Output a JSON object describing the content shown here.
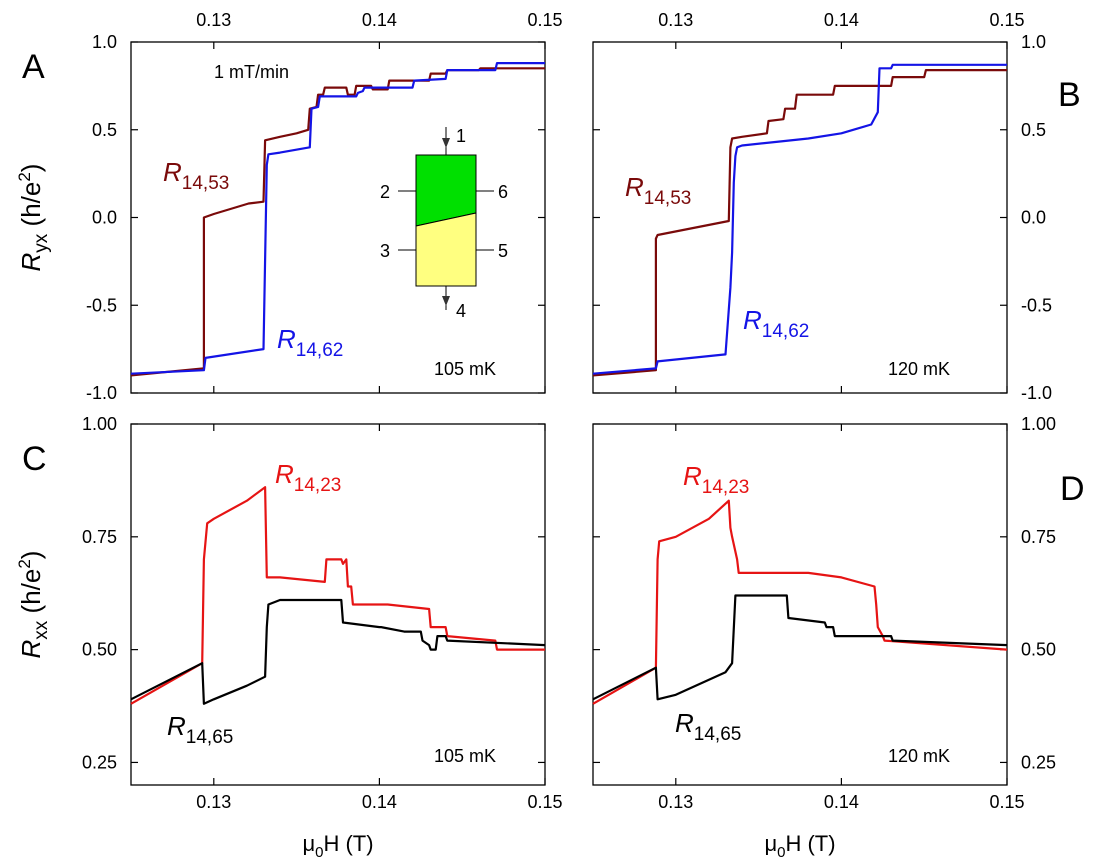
{
  "chart_data": [
    {
      "panel": "A",
      "type": "line",
      "xaxis": {
        "ticks": [
          0.13,
          0.14,
          0.15
        ],
        "tick_labels": [
          "0.13",
          "0.14",
          "0.15"
        ],
        "labels_on": "top",
        "range": [
          0.125,
          0.15
        ]
      },
      "yaxis": {
        "ticks": [
          -1.0,
          -0.5,
          0.0,
          0.5,
          1.0
        ],
        "tick_labels": [
          "-1.0",
          "-0.5",
          "0.0",
          "0.5",
          "1.0"
        ],
        "range": [
          -1.0,
          1.0
        ],
        "label_main": "R",
        "label_sub": "yx",
        "label_rest": " (h/e",
        "label_sup": "2",
        "label_end": ")"
      },
      "annotations": {
        "rate": "1 mT/min",
        "temperature": "105 mK"
      },
      "series": [
        {
          "name_main": "R",
          "name_sub": "14,53",
          "color": "#7a0a0a",
          "x": [
            0.125,
            0.1294,
            0.1294,
            0.13,
            0.1321,
            0.133,
            0.1331,
            0.134,
            0.135,
            0.1357,
            0.1358,
            0.1362,
            0.1363,
            0.1366,
            0.1367,
            0.138,
            0.1381,
            0.1385,
            0.1386,
            0.1395,
            0.1396,
            0.1405,
            0.1406,
            0.143,
            0.1431,
            0.144,
            0.1441,
            0.146,
            0.1461,
            0.15
          ],
          "y": [
            -0.9,
            -0.86,
            0.0,
            0.02,
            0.08,
            0.09,
            0.44,
            0.46,
            0.48,
            0.5,
            0.62,
            0.63,
            0.7,
            0.7,
            0.74,
            0.74,
            0.7,
            0.7,
            0.75,
            0.75,
            0.73,
            0.73,
            0.78,
            0.78,
            0.82,
            0.82,
            0.84,
            0.84,
            0.85,
            0.85
          ]
        },
        {
          "name_main": "R",
          "name_sub": "14,62",
          "color": "#1414e6",
          "x": [
            0.125,
            0.1294,
            0.1295,
            0.133,
            0.1332,
            0.1333,
            0.134,
            0.1358,
            0.1359,
            0.1363,
            0.1364,
            0.1386,
            0.1387,
            0.139,
            0.1391,
            0.142,
            0.1421,
            0.144,
            0.1441,
            0.147,
            0.1471,
            0.15
          ],
          "y": [
            -0.89,
            -0.87,
            -0.8,
            -0.75,
            0.3,
            0.36,
            0.37,
            0.4,
            0.62,
            0.63,
            0.69,
            0.69,
            0.71,
            0.72,
            0.74,
            0.74,
            0.78,
            0.79,
            0.84,
            0.84,
            0.88,
            0.88
          ]
        }
      ]
    },
    {
      "panel": "B",
      "type": "line",
      "xaxis": {
        "ticks": [
          0.13,
          0.14,
          0.15
        ],
        "tick_labels": [
          "0.13",
          "0.14",
          "0.15"
        ],
        "labels_on": "top",
        "range": [
          0.125,
          0.15
        ]
      },
      "yaxis": {
        "ticks": [
          -1.0,
          -0.5,
          0.0,
          0.5,
          1.0
        ],
        "tick_labels": [
          "-1.0",
          "-0.5",
          "0.0",
          "0.5",
          "1.0"
        ],
        "range": [
          -1.0,
          1.0
        ],
        "labels_on": "right"
      },
      "annotations": {
        "temperature": "120 mK"
      },
      "series": [
        {
          "name_main": "R",
          "name_sub": "14,53",
          "color": "#7a0a0a",
          "x": [
            0.125,
            0.1288,
            0.1288,
            0.1289,
            0.1332,
            0.1333,
            0.1334,
            0.134,
            0.1355,
            0.1356,
            0.1365,
            0.1366,
            0.1372,
            0.1373,
            0.1395,
            0.1396,
            0.143,
            0.1431,
            0.145,
            0.1451,
            0.15
          ],
          "y": [
            -0.9,
            -0.87,
            -0.12,
            -0.1,
            -0.02,
            0.4,
            0.45,
            0.46,
            0.48,
            0.55,
            0.56,
            0.62,
            0.62,
            0.7,
            0.7,
            0.75,
            0.75,
            0.8,
            0.8,
            0.84,
            0.84
          ]
        },
        {
          "name_main": "R",
          "name_sub": "14,62",
          "color": "#1414e6",
          "x": [
            0.125,
            0.1288,
            0.1289,
            0.133,
            0.1333,
            0.1334,
            0.1335,
            0.1336,
            0.1337,
            0.134,
            0.136,
            0.138,
            0.14,
            0.1418,
            0.1422,
            0.1423,
            0.143,
            0.1431,
            0.15
          ],
          "y": [
            -0.89,
            -0.86,
            -0.82,
            -0.78,
            -0.4,
            -0.2,
            0.2,
            0.35,
            0.4,
            0.41,
            0.43,
            0.45,
            0.48,
            0.53,
            0.6,
            0.85,
            0.85,
            0.87,
            0.87
          ]
        }
      ]
    },
    {
      "panel": "C",
      "type": "line",
      "xaxis": {
        "ticks": [
          0.13,
          0.14,
          0.15
        ],
        "tick_labels": [
          "0.13",
          "0.14",
          "0.15"
        ],
        "labels_on": "bottom",
        "range": [
          0.125,
          0.15
        ],
        "label_pre": "μ",
        "label_sub": "0",
        "label_rest": "H (T)"
      },
      "yaxis": {
        "ticks": [
          0.25,
          0.5,
          0.75,
          1.0
        ],
        "tick_labels": [
          "0.25",
          "0.50",
          "0.75",
          "1.00"
        ],
        "range": [
          0.2,
          1.0
        ],
        "label_main": "R",
        "label_sub": "xx",
        "label_rest": " (h/e",
        "label_sup": "2",
        "label_end": ")"
      },
      "annotations": {
        "temperature": "105 mK"
      },
      "series": [
        {
          "name_main": "R",
          "name_sub": "14,23",
          "color": "#e61414",
          "x": [
            0.125,
            0.1293,
            0.1294,
            0.1296,
            0.13,
            0.132,
            0.1331,
            0.1332,
            0.134,
            0.1367,
            0.1368,
            0.1377,
            0.1378,
            0.138,
            0.1381,
            0.1383,
            0.1384,
            0.1405,
            0.143,
            0.1431,
            0.144,
            0.1441,
            0.147,
            0.1471,
            0.15
          ],
          "y": [
            0.38,
            0.47,
            0.7,
            0.78,
            0.79,
            0.83,
            0.86,
            0.66,
            0.66,
            0.65,
            0.7,
            0.7,
            0.69,
            0.7,
            0.64,
            0.64,
            0.6,
            0.6,
            0.59,
            0.55,
            0.55,
            0.53,
            0.52,
            0.5,
            0.5
          ]
        },
        {
          "name_main": "R",
          "name_sub": "14,65",
          "color": "#000000",
          "x": [
            0.125,
            0.1293,
            0.1294,
            0.13,
            0.132,
            0.1331,
            0.1332,
            0.1333,
            0.134,
            0.1377,
            0.1378,
            0.14,
            0.1401,
            0.1415,
            0.1425,
            0.1426,
            0.143,
            0.1431,
            0.1434,
            0.1435,
            0.144,
            0.1441,
            0.15
          ],
          "y": [
            0.39,
            0.47,
            0.38,
            0.39,
            0.42,
            0.44,
            0.55,
            0.6,
            0.61,
            0.61,
            0.56,
            0.55,
            0.55,
            0.54,
            0.54,
            0.52,
            0.51,
            0.5,
            0.5,
            0.53,
            0.53,
            0.52,
            0.51
          ]
        }
      ]
    },
    {
      "panel": "D",
      "type": "line",
      "xaxis": {
        "ticks": [
          0.13,
          0.14,
          0.15
        ],
        "tick_labels": [
          "0.13",
          "0.14",
          "0.15"
        ],
        "labels_on": "bottom",
        "range": [
          0.125,
          0.15
        ],
        "label_pre": "μ",
        "label_sub": "0",
        "label_rest": "H (T)"
      },
      "yaxis": {
        "ticks": [
          0.25,
          0.5,
          0.75,
          1.0
        ],
        "tick_labels": [
          "0.25",
          "0.50",
          "0.75",
          "1.00"
        ],
        "range": [
          0.2,
          1.0
        ],
        "labels_on": "right"
      },
      "annotations": {
        "temperature": "120 mK"
      },
      "series": [
        {
          "name_main": "R",
          "name_sub": "14,23",
          "color": "#e61414",
          "x": [
            0.125,
            0.1288,
            0.1289,
            0.129,
            0.13,
            0.132,
            0.1332,
            0.1333,
            0.1334,
            0.1337,
            0.1338,
            0.136,
            0.138,
            0.14,
            0.142,
            0.1421,
            0.1422,
            0.1425,
            0.1426,
            0.15
          ],
          "y": [
            0.38,
            0.46,
            0.7,
            0.74,
            0.75,
            0.79,
            0.83,
            0.77,
            0.75,
            0.7,
            0.67,
            0.67,
            0.67,
            0.66,
            0.64,
            0.6,
            0.55,
            0.53,
            0.52,
            0.5
          ]
        },
        {
          "name_main": "R",
          "name_sub": "14,65",
          "color": "#000000",
          "x": [
            0.125,
            0.1288,
            0.1289,
            0.13,
            0.133,
            0.1334,
            0.1336,
            0.134,
            0.1367,
            0.1368,
            0.139,
            0.1391,
            0.1395,
            0.1396,
            0.142,
            0.143,
            0.1431,
            0.15
          ],
          "y": [
            0.39,
            0.46,
            0.39,
            0.4,
            0.45,
            0.47,
            0.62,
            0.62,
            0.62,
            0.57,
            0.56,
            0.55,
            0.55,
            0.53,
            0.53,
            0.53,
            0.52,
            0.51
          ]
        }
      ]
    }
  ],
  "inset": {
    "terminals": [
      "1",
      "2",
      "3",
      "4",
      "5",
      "6"
    ],
    "colors": {
      "top_region": "#00e000",
      "bottom_region": "#ffff80"
    }
  }
}
